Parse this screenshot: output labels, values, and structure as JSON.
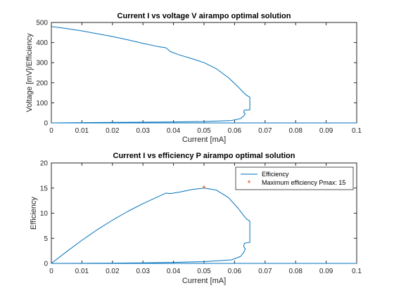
{
  "colors": {
    "series": "#0072bd",
    "marker": "#d95319",
    "axis": "#262626"
  },
  "chart_data": [
    {
      "type": "line",
      "title": "Current I vs voltage V airampo optimal solution",
      "xlabel": "Current [mA]",
      "ylabel": "Voltage [mV]/Efficiency",
      "xlim": [
        0,
        0.1
      ],
      "ylim": [
        0,
        500
      ],
      "xticks": [
        0,
        0.01,
        0.02,
        0.03,
        0.04,
        0.05,
        0.06,
        0.07,
        0.08,
        0.09,
        0.1
      ],
      "xtick_labels": [
        "0",
        "0.01",
        "0.02",
        "0.03",
        "0.04",
        "0.05",
        "0.06",
        "0.07",
        "0.08",
        "0.09",
        "0.1"
      ],
      "yticks": [
        0,
        100,
        200,
        300,
        400,
        500
      ],
      "ytick_labels": [
        "0",
        "100",
        "200",
        "300",
        "400",
        "500"
      ],
      "grid": false,
      "series": [
        {
          "x": [
            0,
            0.005,
            0.01,
            0.015,
            0.02,
            0.025,
            0.03,
            0.035,
            0.0375,
            0.039,
            0.042,
            0.046,
            0.05,
            0.054,
            0.058,
            0.061,
            0.063,
            0.064,
            0.065,
            0.065,
            0.065,
            0.064,
            0.0632,
            0.063,
            0.0635,
            0.063,
            0.062,
            0.059,
            0.05,
            0.04,
            0.03,
            0.02,
            0.01,
            0,
            0.05,
            0.1
          ],
          "y": [
            480,
            470,
            458,
            444,
            430,
            414,
            396,
            380,
            374,
            355,
            338,
            320,
            300,
            270,
            225,
            182,
            150,
            137,
            128,
            100,
            65,
            64,
            64,
            53,
            46,
            35,
            22,
            12,
            7,
            5,
            3.5,
            2.5,
            1.5,
            0,
            0,
            0
          ]
        }
      ]
    },
    {
      "type": "line",
      "title": "Current I vs efficiency P airampo optimal solution",
      "xlabel": "Current [mA]",
      "ylabel": "Efficiency",
      "xlim": [
        0,
        0.1
      ],
      "ylim": [
        0,
        20
      ],
      "xticks": [
        0,
        0.01,
        0.02,
        0.03,
        0.04,
        0.05,
        0.06,
        0.07,
        0.08,
        0.09,
        0.1
      ],
      "xtick_labels": [
        "0",
        "0.01",
        "0.02",
        "0.03",
        "0.04",
        "0.05",
        "0.06",
        "0.07",
        "0.08",
        "0.09",
        "0.1"
      ],
      "yticks": [
        0,
        5,
        10,
        15,
        20
      ],
      "ytick_labels": [
        "0",
        "5",
        "10",
        "15",
        "20"
      ],
      "grid": false,
      "legend": "top-right",
      "series": [
        {
          "name": "Efficiency",
          "x": [
            0,
            0.005,
            0.01,
            0.015,
            0.02,
            0.025,
            0.03,
            0.035,
            0.0375,
            0.039,
            0.042,
            0.046,
            0.05,
            0.054,
            0.058,
            0.061,
            0.063,
            0.064,
            0.065,
            0.065,
            0.065,
            0.064,
            0.0632,
            0.063,
            0.0635,
            0.063,
            0.062,
            0.059,
            0.05,
            0.04,
            0.03,
            0.02,
            0.01,
            0,
            0.05,
            0.1
          ],
          "y": [
            0,
            2.35,
            4.6,
            6.7,
            8.6,
            10.35,
            11.9,
            13.3,
            14.0,
            13.9,
            14.2,
            14.7,
            15.0,
            14.6,
            13.1,
            11.1,
            9.5,
            8.8,
            8.4,
            6.5,
            4.2,
            4.1,
            4.0,
            3.3,
            2.9,
            2.2,
            1.4,
            0.7,
            0.35,
            0.2,
            0.1,
            0.05,
            0.02,
            0,
            0,
            0
          ]
        }
      ],
      "marker": {
        "name": "Maximum efficiency Pmax: 15",
        "x": 0.05,
        "y": 15
      }
    }
  ]
}
